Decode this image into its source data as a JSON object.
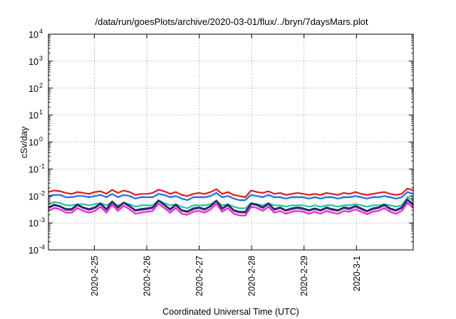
{
  "chart_data": {
    "type": "line",
    "title": "/data/run/goesPlots/archive/2020-03-01/flux/../bryn/7daysMars.plot",
    "xlabel": "Coordinated Universal Time (UTC)",
    "ylabel": "cSv/day",
    "y_scale": "log",
    "ylim": [
      0.0001,
      10000
    ],
    "y_ticks": [
      {
        "base": "10",
        "exp": "-4"
      },
      {
        "base": "10",
        "exp": "-3"
      },
      {
        "base": "10",
        "exp": "-2"
      },
      {
        "base": "10",
        "exp": "-1"
      },
      {
        "base": "10",
        "exp": "0"
      },
      {
        "base": "10",
        "exp": "1"
      },
      {
        "base": "10",
        "exp": "2"
      },
      {
        "base": "10",
        "exp": "3"
      },
      {
        "base": "10",
        "exp": "4"
      }
    ],
    "xlim": [
      "2020-02-24T03:00",
      "2020-03-02T02:00"
    ],
    "x_ticks": [
      "2020-2-25",
      "2020-2-26",
      "2020-2-27",
      "2020-2-28",
      "2020-2-29",
      "2020-3-1"
    ],
    "grid": true,
    "legend": "none",
    "series": [
      {
        "color": "#e41a1c",
        "values": [
          0.014,
          0.016,
          0.015,
          0.013,
          0.012,
          0.014,
          0.013,
          0.012,
          0.014,
          0.015,
          0.012,
          0.017,
          0.013,
          0.016,
          0.014,
          0.011,
          0.012,
          0.012,
          0.013,
          0.017,
          0.015,
          0.012,
          0.014,
          0.011,
          0.01,
          0.012,
          0.013,
          0.012,
          0.014,
          0.018,
          0.012,
          0.014,
          0.011,
          0.01,
          0.009,
          0.016,
          0.014,
          0.013,
          0.015,
          0.012,
          0.013,
          0.011,
          0.012,
          0.013,
          0.012,
          0.011,
          0.012,
          0.011,
          0.013,
          0.012,
          0.011,
          0.013,
          0.012,
          0.014,
          0.012,
          0.011,
          0.012,
          0.013,
          0.014,
          0.012,
          0.011,
          0.012,
          0.019,
          0.016
        ]
      },
      {
        "color": "#1f6fe5",
        "values": [
          0.01,
          0.011,
          0.011,
          0.009,
          0.009,
          0.01,
          0.01,
          0.009,
          0.01,
          0.011,
          0.009,
          0.012,
          0.009,
          0.011,
          0.01,
          0.008,
          0.009,
          0.009,
          0.009,
          0.012,
          0.011,
          0.009,
          0.01,
          0.008,
          0.007,
          0.009,
          0.009,
          0.009,
          0.01,
          0.013,
          0.009,
          0.01,
          0.008,
          0.007,
          0.007,
          0.011,
          0.01,
          0.009,
          0.011,
          0.009,
          0.009,
          0.008,
          0.009,
          0.009,
          0.009,
          0.008,
          0.009,
          0.008,
          0.009,
          0.009,
          0.008,
          0.009,
          0.009,
          0.01,
          0.009,
          0.008,
          0.009,
          0.009,
          0.01,
          0.009,
          0.008,
          0.009,
          0.014,
          0.012
        ]
      },
      {
        "color": "#22c29a",
        "values": [
          0.005,
          0.006,
          0.0055,
          0.0045,
          0.0045,
          0.005,
          0.005,
          0.0045,
          0.005,
          0.0055,
          0.0045,
          0.006,
          0.0045,
          0.0055,
          0.005,
          0.004,
          0.0045,
          0.0045,
          0.0045,
          0.007,
          0.0055,
          0.0045,
          0.005,
          0.004,
          0.0035,
          0.0045,
          0.0045,
          0.0045,
          0.005,
          0.0065,
          0.0045,
          0.005,
          0.004,
          0.0035,
          0.0035,
          0.0055,
          0.005,
          0.0045,
          0.0055,
          0.0045,
          0.0045,
          0.004,
          0.0045,
          0.0045,
          0.0045,
          0.004,
          0.0045,
          0.004,
          0.0045,
          0.0045,
          0.004,
          0.0045,
          0.0045,
          0.005,
          0.0045,
          0.004,
          0.0045,
          0.0045,
          0.005,
          0.0045,
          0.004,
          0.0045,
          0.009,
          0.007
        ]
      },
      {
        "color": "#7b3f9e",
        "values": [
          0.0035,
          0.0045,
          0.004,
          0.003,
          0.003,
          0.0045,
          0.0035,
          0.003,
          0.0035,
          0.005,
          0.003,
          0.006,
          0.0035,
          0.0055,
          0.004,
          0.0028,
          0.003,
          0.0032,
          0.0035,
          0.0065,
          0.0045,
          0.003,
          0.0045,
          0.0028,
          0.0025,
          0.0032,
          0.0035,
          0.003,
          0.004,
          0.0065,
          0.0032,
          0.0045,
          0.0028,
          0.0024,
          0.0024,
          0.005,
          0.0045,
          0.0035,
          0.005,
          0.003,
          0.0035,
          0.0028,
          0.0032,
          0.0035,
          0.0032,
          0.0028,
          0.0032,
          0.0028,
          0.0035,
          0.003,
          0.0028,
          0.0035,
          0.0032,
          0.004,
          0.0032,
          0.0026,
          0.0032,
          0.0035,
          0.0045,
          0.0032,
          0.0028,
          0.0035,
          0.007,
          0.0045
        ]
      },
      {
        "color": "#1c2a5a",
        "values": [
          0.0038,
          0.0048,
          0.0042,
          0.0033,
          0.0033,
          0.0048,
          0.0038,
          0.0033,
          0.0038,
          0.0053,
          0.0033,
          0.0063,
          0.0038,
          0.0058,
          0.0043,
          0.003,
          0.0033,
          0.0035,
          0.0038,
          0.0068,
          0.0048,
          0.0033,
          0.0048,
          0.003,
          0.0027,
          0.0035,
          0.0038,
          0.0033,
          0.0043,
          0.0068,
          0.0035,
          0.0048,
          0.003,
          0.0026,
          0.0026,
          0.0053,
          0.0048,
          0.0038,
          0.0053,
          0.0033,
          0.0038,
          0.003,
          0.0035,
          0.0038,
          0.0035,
          0.003,
          0.0035,
          0.003,
          0.0038,
          0.0033,
          0.003,
          0.0038,
          0.0035,
          0.0043,
          0.0035,
          0.0028,
          0.0035,
          0.0038,
          0.0048,
          0.0035,
          0.003,
          0.0038,
          0.0075,
          0.0048
        ]
      },
      {
        "color": "#ee1fd6",
        "values": [
          0.0028,
          0.0036,
          0.0032,
          0.0024,
          0.0024,
          0.0036,
          0.0028,
          0.0024,
          0.0028,
          0.004,
          0.0024,
          0.0048,
          0.0028,
          0.0044,
          0.0032,
          0.0022,
          0.0024,
          0.0026,
          0.0028,
          0.0052,
          0.0036,
          0.0024,
          0.0036,
          0.0022,
          0.002,
          0.0026,
          0.0028,
          0.0024,
          0.0032,
          0.0052,
          0.0026,
          0.0036,
          0.0022,
          0.0019,
          0.0019,
          0.004,
          0.0036,
          0.0028,
          0.004,
          0.0024,
          0.0028,
          0.0022,
          0.0026,
          0.0028,
          0.0026,
          0.0022,
          0.0026,
          0.0022,
          0.0028,
          0.0024,
          0.0022,
          0.0028,
          0.0026,
          0.0032,
          0.0026,
          0.0021,
          0.0026,
          0.0028,
          0.0036,
          0.0026,
          0.0022,
          0.0028,
          0.0056,
          0.0036
        ]
      }
    ]
  }
}
